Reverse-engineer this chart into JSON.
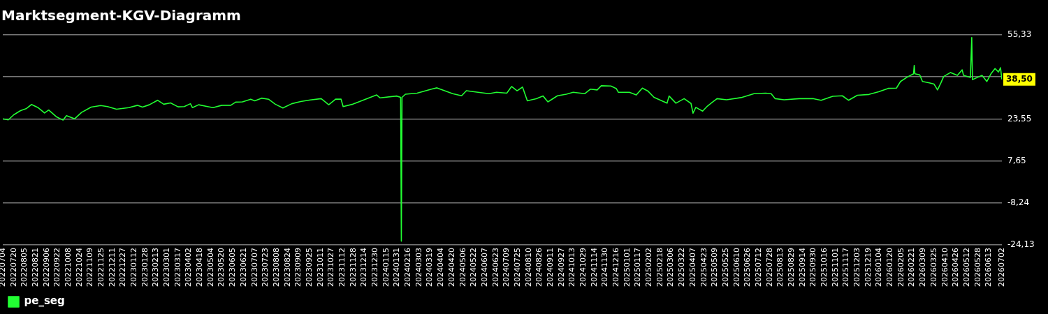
{
  "chart_data": {
    "type": "line",
    "title": "Marktsegment-KGV-Diagramm",
    "x": [
      "2022-07-04",
      "2022-07-12",
      "2022-07-20",
      "2022-07-30",
      "2022-08-07",
      "2022-08-15",
      "2022-08-24",
      "2022-09-03",
      "2022-09-09",
      "2022-09-20",
      "2022-09-30",
      "2022-10-05",
      "2022-10-17",
      "2022-10-27",
      "2022-11-10",
      "2022-11-24",
      "2022-12-04",
      "2022-12-17",
      "2023-01-04",
      "2023-01-17",
      "2023-01-24",
      "2023-02-03",
      "2023-02-15",
      "2023-02-24",
      "2023-03-06",
      "2023-03-17",
      "2023-03-26",
      "2023-04-04",
      "2023-04-07",
      "2023-04-16",
      "2023-04-29",
      "2023-05-07",
      "2023-05-20",
      "2023-06-02",
      "2023-06-09",
      "2023-06-19",
      "2023-07-01",
      "2023-07-07",
      "2023-07-17",
      "2023-07-27",
      "2023-08-06",
      "2023-08-17",
      "2023-08-30",
      "2023-09-12",
      "2023-09-26",
      "2023-10-12",
      "2023-10-23",
      "2023-11-02",
      "2023-11-10",
      "2023-11-13",
      "2023-11-27",
      "2023-12-13",
      "2024-01-01",
      "2024-01-06",
      "2024-01-30",
      "2024-02-05",
      "2024-02-06",
      "2024-02-07",
      "2024-02-12",
      "2024-02-29",
      "2024-03-21",
      "2024-03-29",
      "2024-04-21",
      "2024-05-04",
      "2024-05-11",
      "2024-05-28",
      "2024-06-13",
      "2024-06-24",
      "2024-07-09",
      "2024-07-16",
      "2024-07-24",
      "2024-08-01",
      "2024-08-08",
      "2024-08-21",
      "2024-08-31",
      "2024-09-07",
      "2024-09-21",
      "2024-10-04",
      "2024-10-14",
      "2024-10-31",
      "2024-11-08",
      "2024-11-18",
      "2024-11-24",
      "2024-12-08",
      "2024-12-16",
      "2024-12-19",
      "2025-01-04",
      "2025-01-14",
      "2025-01-23",
      "2025-01-31",
      "2025-02-09",
      "2025-02-21",
      "2025-02-28",
      "2025-03-03",
      "2025-03-13",
      "2025-03-25",
      "2025-04-04",
      "2025-04-07",
      "2025-04-11",
      "2025-04-21",
      "2025-04-28",
      "2025-05-12",
      "2025-05-26",
      "2025-06-16",
      "2025-07-05",
      "2025-07-22",
      "2025-07-30",
      "2025-08-05",
      "2025-08-18",
      "2025-09-09",
      "2025-09-30",
      "2025-10-11",
      "2025-10-28",
      "2025-11-11",
      "2025-11-20",
      "2025-12-03",
      "2025-12-20",
      "2026-01-03",
      "2026-01-17",
      "2026-01-29",
      "2026-02-04",
      "2026-02-14",
      "2026-02-23",
      "2026-02-24",
      "2026-02-25",
      "2026-03-04",
      "2026-03-08",
      "2026-03-18",
      "2026-03-25",
      "2026-03-30",
      "2026-04-04",
      "2026-04-08",
      "2026-04-18",
      "2026-04-28",
      "2026-05-05",
      "2026-05-07",
      "2026-05-17",
      "2026-05-19",
      "2026-05-20",
      "2026-06-03",
      "2026-06-10",
      "2026-06-16",
      "2026-06-22",
      "2026-06-27",
      "2026-06-30",
      "2026-07-02"
    ],
    "series": [
      {
        "name": "pe_seg",
        "color": "#22ff33",
        "values": [
          23.6,
          23.2,
          25.1,
          26.7,
          27.4,
          29.0,
          27.9,
          25.8,
          26.9,
          24.4,
          23.1,
          24.8,
          23.6,
          26.0,
          28.0,
          28.6,
          28.2,
          27.2,
          27.8,
          28.7,
          28.0,
          28.9,
          30.6,
          29.1,
          29.6,
          28.1,
          28.2,
          29.3,
          27.8,
          28.9,
          28.2,
          27.8,
          28.7,
          28.7,
          29.9,
          30.0,
          31.0,
          30.4,
          31.4,
          31.0,
          29.1,
          27.7,
          29.3,
          30.1,
          30.7,
          31.2,
          28.9,
          31.0,
          31.0,
          28.2,
          29.1,
          30.7,
          32.6,
          31.5,
          32.2,
          31.7,
          -22.7,
          31.7,
          32.9,
          33.3,
          34.8,
          35.3,
          33.1,
          32.3,
          34.2,
          33.6,
          33.1,
          33.6,
          33.3,
          35.8,
          34.2,
          35.6,
          30.4,
          31.2,
          32.2,
          30.0,
          32.3,
          32.9,
          33.6,
          33.1,
          34.8,
          34.5,
          36.1,
          36.0,
          35.0,
          33.6,
          33.6,
          32.6,
          35.2,
          34.1,
          31.7,
          30.3,
          29.5,
          32.2,
          29.5,
          31.2,
          29.4,
          25.7,
          27.9,
          26.5,
          28.4,
          31.2,
          30.8,
          31.6,
          33.1,
          33.3,
          33.1,
          31.2,
          30.8,
          31.2,
          31.2,
          30.6,
          32.1,
          32.3,
          30.6,
          32.5,
          32.8,
          33.8,
          35.1,
          35.2,
          37.7,
          39.4,
          40.6,
          43.8,
          40.6,
          40.2,
          37.7,
          37.2,
          36.7,
          34.5,
          37.2,
          39.6,
          41.1,
          40.0,
          42.1,
          40.0,
          39.2,
          54.3,
          38.4,
          40.0,
          37.7,
          40.6,
          42.6,
          41.3,
          42.9,
          38.5
        ]
      }
    ],
    "xlim": [
      "2022-07-04",
      "2026-07-02"
    ],
    "xticks": [
      {
        "value": "2022-07-04",
        "label": "20220704"
      },
      {
        "value": "2022-07-20",
        "label": "20220720"
      },
      {
        "value": "2022-08-05",
        "label": "20220805"
      },
      {
        "value": "2022-08-21",
        "label": "20220821"
      },
      {
        "value": "2022-09-06",
        "label": "20220906"
      },
      {
        "value": "2022-09-22",
        "label": "20220922"
      },
      {
        "value": "2022-10-08",
        "label": "20221008"
      },
      {
        "value": "2022-10-24",
        "label": "20221024"
      },
      {
        "value": "2022-11-09",
        "label": "20221109"
      },
      {
        "value": "2022-11-25",
        "label": "20221125"
      },
      {
        "value": "2022-12-11",
        "label": "20221211"
      },
      {
        "value": "2022-12-27",
        "label": "20221227"
      },
      {
        "value": "2023-01-12",
        "label": "20230112"
      },
      {
        "value": "2023-01-28",
        "label": "20230128"
      },
      {
        "value": "2023-02-13",
        "label": "20230213"
      },
      {
        "value": "2023-03-01",
        "label": "20230301"
      },
      {
        "value": "2023-03-17",
        "label": "20230317"
      },
      {
        "value": "2023-04-02",
        "label": "20230402"
      },
      {
        "value": "2023-04-18",
        "label": "20230418"
      },
      {
        "value": "2023-05-04",
        "label": "20230504"
      },
      {
        "value": "2023-05-20",
        "label": "20230520"
      },
      {
        "value": "2023-06-05",
        "label": "20230605"
      },
      {
        "value": "2023-06-21",
        "label": "20230621"
      },
      {
        "value": "2023-07-07",
        "label": "20230707"
      },
      {
        "value": "2023-07-23",
        "label": "20230723"
      },
      {
        "value": "2023-08-08",
        "label": "20230808"
      },
      {
        "value": "2023-08-24",
        "label": "20230824"
      },
      {
        "value": "2023-09-09",
        "label": "20230909"
      },
      {
        "value": "2023-09-25",
        "label": "20230925"
      },
      {
        "value": "2023-10-11",
        "label": "20231011"
      },
      {
        "value": "2023-10-27",
        "label": "20231027"
      },
      {
        "value": "2023-11-12",
        "label": "20231112"
      },
      {
        "value": "2023-11-28",
        "label": "20231128"
      },
      {
        "value": "2023-12-14",
        "label": "20231214"
      },
      {
        "value": "2023-12-30",
        "label": "20231230"
      },
      {
        "value": "2024-01-15",
        "label": "20240115"
      },
      {
        "value": "2024-01-31",
        "label": "20240131"
      },
      {
        "value": "2024-02-16",
        "label": "20240216"
      },
      {
        "value": "2024-03-03",
        "label": "20240303"
      },
      {
        "value": "2024-03-19",
        "label": "20240319"
      },
      {
        "value": "2024-04-04",
        "label": "20240404"
      },
      {
        "value": "2024-04-20",
        "label": "20240420"
      },
      {
        "value": "2024-05-06",
        "label": "20240506"
      },
      {
        "value": "2024-05-22",
        "label": "20240522"
      },
      {
        "value": "2024-06-07",
        "label": "20240607"
      },
      {
        "value": "2024-06-23",
        "label": "20240623"
      },
      {
        "value": "2024-07-09",
        "label": "20240709"
      },
      {
        "value": "2024-07-25",
        "label": "20240725"
      },
      {
        "value": "2024-08-10",
        "label": "20240810"
      },
      {
        "value": "2024-08-26",
        "label": "20240826"
      },
      {
        "value": "2024-09-11",
        "label": "20240911"
      },
      {
        "value": "2024-09-27",
        "label": "20240927"
      },
      {
        "value": "2024-10-13",
        "label": "20241013"
      },
      {
        "value": "2024-10-29",
        "label": "20241029"
      },
      {
        "value": "2024-11-14",
        "label": "20241114"
      },
      {
        "value": "2024-11-30",
        "label": "20241130"
      },
      {
        "value": "2024-12-16",
        "label": "20241216"
      },
      {
        "value": "2025-01-01",
        "label": "20250101"
      },
      {
        "value": "2025-01-17",
        "label": "20250117"
      },
      {
        "value": "2025-02-02",
        "label": "20250202"
      },
      {
        "value": "2025-02-18",
        "label": "20250218"
      },
      {
        "value": "2025-03-06",
        "label": "20250306"
      },
      {
        "value": "2025-03-22",
        "label": "20250322"
      },
      {
        "value": "2025-04-07",
        "label": "20250407"
      },
      {
        "value": "2025-04-23",
        "label": "20250423"
      },
      {
        "value": "2025-05-09",
        "label": "20250509"
      },
      {
        "value": "2025-05-25",
        "label": "20250525"
      },
      {
        "value": "2025-06-10",
        "label": "20250610"
      },
      {
        "value": "2025-06-26",
        "label": "20250626"
      },
      {
        "value": "2025-07-12",
        "label": "20250712"
      },
      {
        "value": "2025-07-28",
        "label": "20250728"
      },
      {
        "value": "2025-08-13",
        "label": "20250813"
      },
      {
        "value": "2025-08-29",
        "label": "20250829"
      },
      {
        "value": "2025-09-14",
        "label": "20250914"
      },
      {
        "value": "2025-09-30",
        "label": "20250930"
      },
      {
        "value": "2025-10-16",
        "label": "20251016"
      },
      {
        "value": "2025-11-01",
        "label": "20251101"
      },
      {
        "value": "2025-11-17",
        "label": "20251117"
      },
      {
        "value": "2025-12-03",
        "label": "20251203"
      },
      {
        "value": "2025-12-19",
        "label": "20251219"
      },
      {
        "value": "2026-01-04",
        "label": "20260104"
      },
      {
        "value": "2026-01-20",
        "label": "20260120"
      },
      {
        "value": "2026-02-05",
        "label": "20260205"
      },
      {
        "value": "2026-02-21",
        "label": "20260221"
      },
      {
        "value": "2026-03-09",
        "label": "20260309"
      },
      {
        "value": "2026-03-25",
        "label": "20260325"
      },
      {
        "value": "2026-04-10",
        "label": "20260410"
      },
      {
        "value": "2026-04-26",
        "label": "20260426"
      },
      {
        "value": "2026-05-12",
        "label": "20260512"
      },
      {
        "value": "2026-05-28",
        "label": "20260528"
      },
      {
        "value": "2026-06-13",
        "label": "20260613"
      },
      {
        "value": "2026-07-02",
        "label": "20260702"
      }
    ],
    "ylim": [
      -24.13,
      55.33
    ],
    "yticks": [
      {
        "value": -24.13,
        "label": "-24,13"
      },
      {
        "value": -8.24,
        "label": "-8,24"
      },
      {
        "value": 7.65,
        "label": "7,65"
      },
      {
        "value": 23.55,
        "label": "23,55"
      },
      {
        "value": 39.44,
        "label": null
      },
      {
        "value": 55.33,
        "label": "55,33"
      }
    ],
    "annotations": [
      {
        "text": "38,50",
        "x": "2026-07-02",
        "y": 38.5
      }
    ],
    "grid": "y",
    "legend": "bottom left"
  }
}
